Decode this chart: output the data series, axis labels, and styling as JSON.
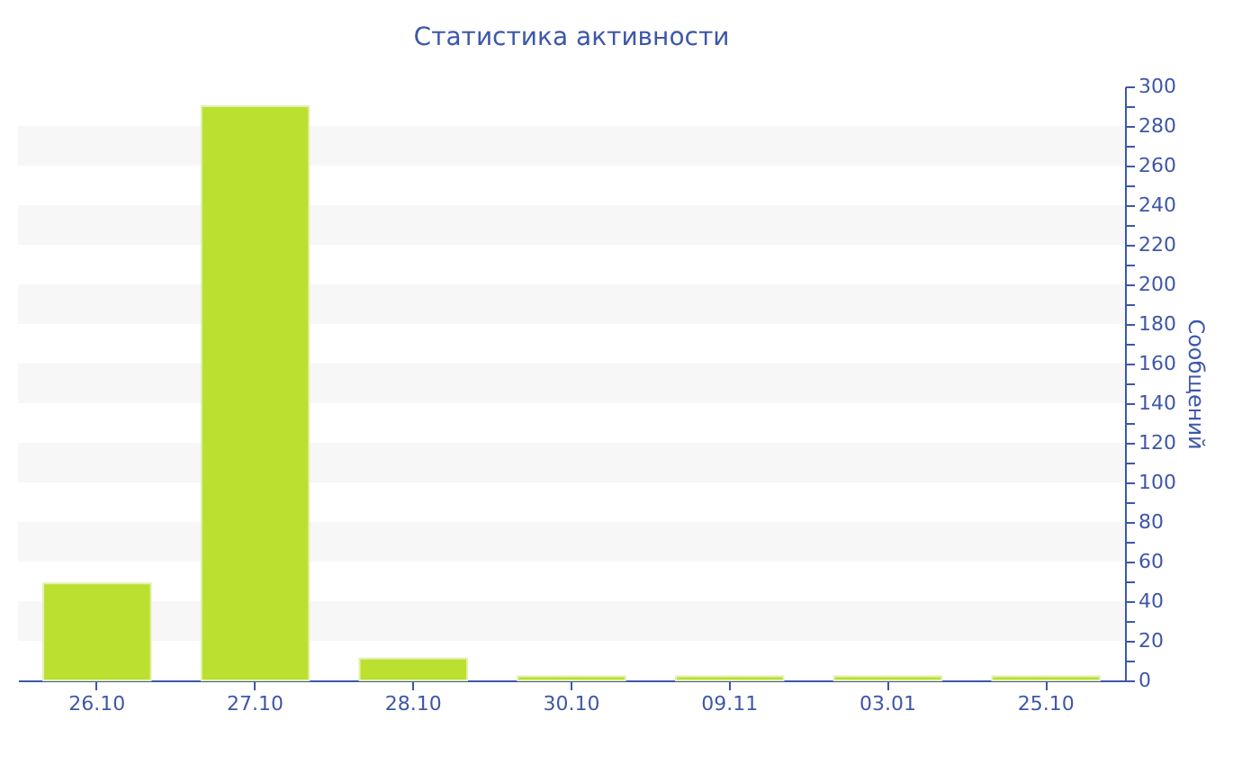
{
  "chart_data": {
    "type": "bar",
    "title": "Статистика активности",
    "ylabel": "Сообщений",
    "categories": [
      "26.10",
      "27.10",
      "28.10",
      "30.10",
      "09.11",
      "03.01",
      "25.10"
    ],
    "values": [
      49,
      290,
      11,
      2,
      2,
      2,
      2
    ],
    "color": "#bbe030",
    "ylim": [
      0,
      300
    ],
    "yticks": [
      0,
      {
        "value": 10,
        "label": null
      },
      20,
      {
        "value": 30,
        "label": null
      },
      40,
      {
        "value": 50,
        "label": null
      },
      60,
      {
        "value": 70,
        "label": null
      },
      80,
      {
        "value": 90,
        "label": null
      },
      100,
      {
        "value": 110,
        "label": null
      },
      120,
      {
        "value": 130,
        "label": null
      },
      140,
      {
        "value": 150,
        "label": null
      },
      160,
      {
        "value": 170,
        "label": null
      },
      180,
      {
        "value": 190,
        "label": null
      },
      200,
      {
        "value": 210,
        "label": null
      },
      220,
      {
        "value": 230,
        "label": null
      },
      240,
      {
        "value": 250,
        "label": null
      },
      260,
      {
        "value": 270,
        "label": null
      },
      280,
      {
        "value": 290,
        "label": null
      },
      300
    ],
    "bands": [
      {
        "axis": "y",
        "from": 20,
        "to": 40,
        "color": "#f7f7f7"
      },
      {
        "axis": "y",
        "from": 60,
        "to": 80,
        "color": "#f7f7f7"
      },
      {
        "axis": "y",
        "from": 100,
        "to": 120,
        "color": "#f7f7f7"
      },
      {
        "axis": "y",
        "from": 140,
        "to": 160,
        "color": "#f7f7f7"
      },
      {
        "axis": "y",
        "from": 180,
        "to": 200,
        "color": "#f7f7f7"
      },
      {
        "axis": "y",
        "from": 220,
        "to": 240,
        "color": "#f7f7f7"
      },
      {
        "axis": "y",
        "from": 260,
        "to": 280,
        "color": "#f7f7f7"
      }
    ],
    "grid": false
  }
}
